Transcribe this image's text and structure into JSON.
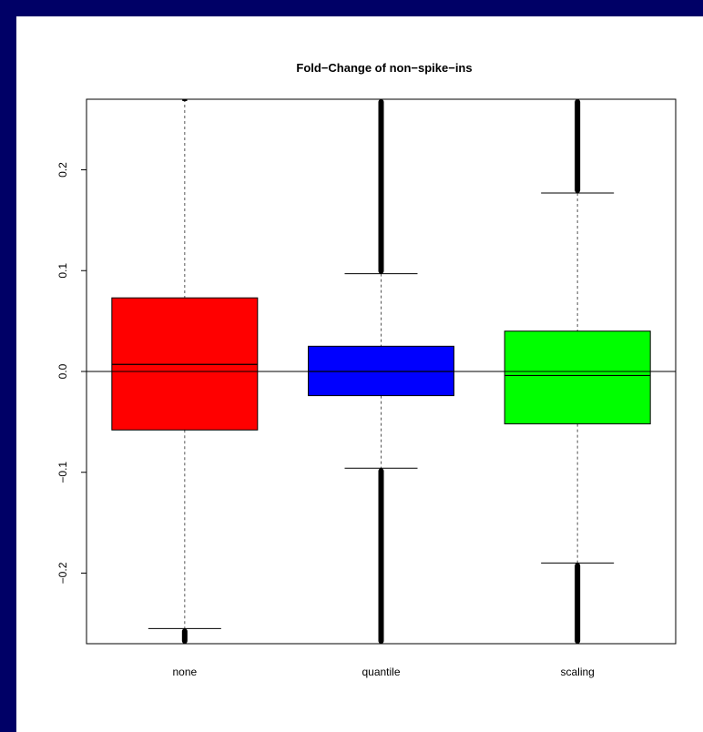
{
  "chart_data": {
    "type": "boxplot",
    "title": "Fold−Change of non−spike−ins",
    "xlabel": "",
    "ylabel": "",
    "ylim": [
      -0.27,
      0.27
    ],
    "y_ticks": [
      -0.2,
      -0.1,
      0.0,
      0.1,
      0.2
    ],
    "y_tick_labels": [
      "−0.2",
      "−0.1",
      "0.0",
      "0.1",
      "0.2"
    ],
    "reference_line_y": 0.0,
    "grid": false,
    "categories": [
      "none",
      "quantile",
      "scaling"
    ],
    "boxes": [
      {
        "category": "none",
        "color": "#ff0000",
        "whisker_low": -0.255,
        "q1": -0.058,
        "median": 0.007,
        "q3": 0.073,
        "whisker_high": 0.27,
        "outliers_low": [
          -0.27,
          -0.255
        ],
        "outliers_high": [
          0.268,
          0.27
        ]
      },
      {
        "category": "quantile",
        "color": "#0000ff",
        "whisker_low": -0.096,
        "q1": -0.024,
        "median": 0.0,
        "q3": 0.025,
        "whisker_high": 0.097,
        "outliers_low": [
          -0.27,
          -0.096
        ],
        "outliers_high": [
          0.097,
          0.27
        ]
      },
      {
        "category": "scaling",
        "color": "#00ff00",
        "whisker_low": -0.19,
        "q1": -0.052,
        "median": -0.004,
        "q3": 0.04,
        "whisker_high": 0.177,
        "outliers_low": [
          -0.27,
          -0.19
        ],
        "outliers_high": [
          0.177,
          0.27
        ]
      }
    ]
  }
}
